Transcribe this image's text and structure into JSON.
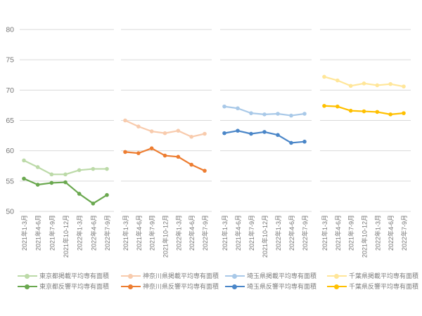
{
  "chart_data": {
    "type": "line",
    "categories": [
      "2021年1-3月",
      "2021年4-6月",
      "2021年7-9月",
      "2021年10-12月",
      "2022年1-3月",
      "2022年4-6月",
      "2022年7-9月"
    ],
    "ylim": [
      50,
      80
    ],
    "yticks": [
      50,
      55,
      60,
      65,
      70,
      75,
      80
    ],
    "grid": true,
    "legend_position": "bottom",
    "axis_color": "#767676",
    "grid_color": "#d9d9d9",
    "legend_text_color": "#7f7f7f",
    "panels": [
      {
        "series": [
          {
            "name": "東京都掲載平均専有面積",
            "color": "#bcdaa8",
            "values": [
              58.4,
              57.3,
              56.1,
              56.1,
              56.8,
              57.0,
              57.0
            ]
          },
          {
            "name": "東京都反響平均専有面積",
            "color": "#6aa84f",
            "values": [
              55.4,
              54.4,
              54.7,
              54.8,
              52.9,
              51.3,
              52.7
            ]
          }
        ]
      },
      {
        "series": [
          {
            "name": "神奈川県掲載平均専有面積",
            "color": "#f8cbad",
            "values": [
              65.0,
              64.0,
              63.2,
              62.9,
              63.3,
              62.3,
              62.8
            ]
          },
          {
            "name": "神奈川県反響平均専有面積",
            "color": "#ed7d31",
            "values": [
              59.8,
              59.6,
              60.4,
              59.2,
              59.0,
              57.7,
              56.7
            ]
          }
        ]
      },
      {
        "series": [
          {
            "name": "埼玉県掲載平均専有面積",
            "color": "#a9c9e8",
            "values": [
              67.3,
              67.0,
              66.2,
              66.0,
              66.1,
              65.8,
              66.1
            ]
          },
          {
            "name": "埼玉県反響平均専有面積",
            "color": "#4a86c8",
            "values": [
              62.9,
              63.3,
              62.8,
              63.1,
              62.6,
              61.3,
              61.5
            ]
          }
        ]
      },
      {
        "series": [
          {
            "name": "千葉県掲載平均専有面積",
            "color": "#ffe699",
            "values": [
              72.2,
              71.6,
              70.7,
              71.1,
              70.8,
              71.0,
              70.6
            ]
          },
          {
            "name": "千葉県反響平均専有面積",
            "color": "#ffc000",
            "values": [
              67.4,
              67.3,
              66.6,
              66.5,
              66.4,
              66.0,
              66.2
            ]
          }
        ]
      }
    ]
  }
}
